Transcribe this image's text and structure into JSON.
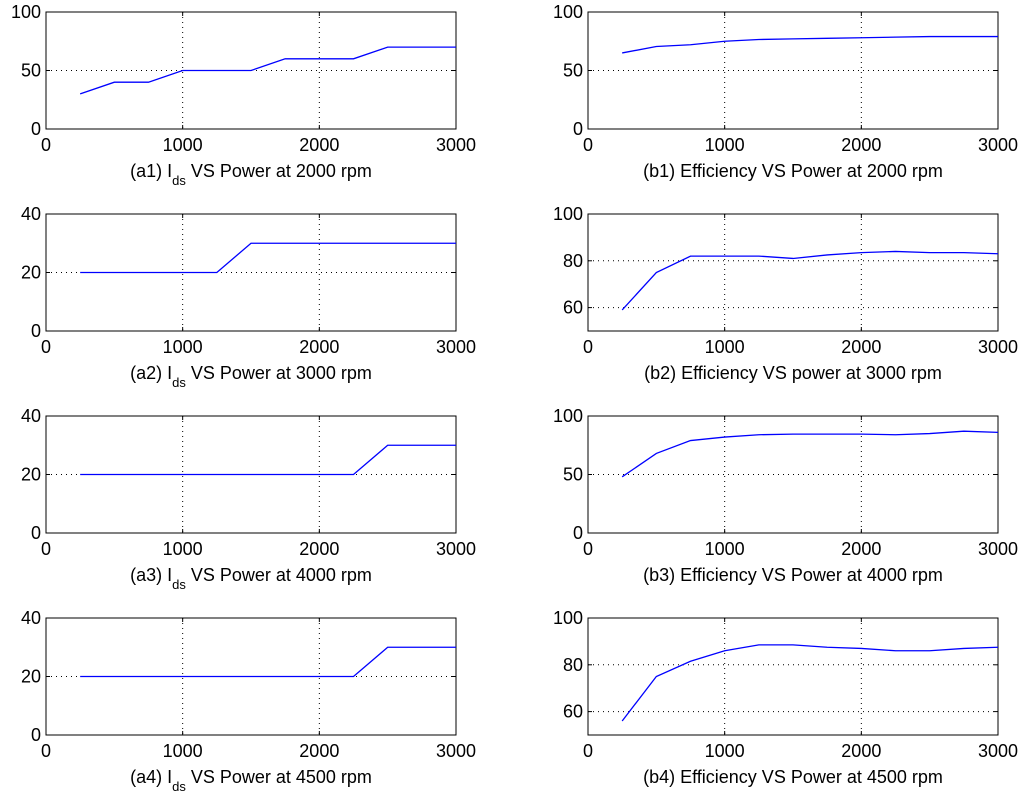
{
  "figure": {
    "line_color": "#0000ff",
    "axis_color": "#000000",
    "grid_style": "dotted"
  },
  "chart_data": [
    {
      "id": "a1",
      "type": "line",
      "caption_prefix": "(a1) I",
      "caption_sub": "ds",
      "caption_suffix": " VS Power at 2000 rpm",
      "xlim": [
        0,
        3000
      ],
      "ylim": [
        0,
        100
      ],
      "xticks": [
        0,
        1000,
        2000,
        3000
      ],
      "yticks": [
        0,
        50,
        100
      ],
      "grid": true,
      "x": [
        250,
        500,
        750,
        1000,
        1250,
        1500,
        1750,
        2000,
        2250,
        2500,
        2750,
        3000
      ],
      "y": [
        30,
        40,
        40,
        50,
        50,
        50,
        60,
        60,
        60,
        70,
        70,
        70
      ]
    },
    {
      "id": "b1",
      "type": "line",
      "caption_prefix": "(b1) Efficiency VS Power at 2000 rpm",
      "caption_sub": "",
      "caption_suffix": "",
      "xlim": [
        0,
        3000
      ],
      "ylim": [
        0,
        100
      ],
      "xticks": [
        0,
        1000,
        2000,
        3000
      ],
      "yticks": [
        0,
        50,
        100
      ],
      "grid": true,
      "x": [
        250,
        500,
        750,
        1000,
        1250,
        1500,
        1750,
        2000,
        2250,
        2500,
        2750,
        3000
      ],
      "y": [
        65,
        70.5,
        72,
        75,
        76.5,
        77,
        77.5,
        78,
        78.5,
        79,
        79,
        79
      ]
    },
    {
      "id": "a2",
      "type": "line",
      "caption_prefix": "(a2) I",
      "caption_sub": "ds",
      "caption_suffix": " VS Power at 3000 rpm",
      "xlim": [
        0,
        3000
      ],
      "ylim": [
        0,
        40
      ],
      "xticks": [
        0,
        1000,
        2000,
        3000
      ],
      "yticks": [
        0,
        20,
        40
      ],
      "grid": true,
      "x": [
        250,
        500,
        750,
        1000,
        1250,
        1500,
        1750,
        2000,
        2250,
        2500,
        2750,
        3000
      ],
      "y": [
        20,
        20,
        20,
        20,
        20,
        30,
        30,
        30,
        30,
        30,
        30,
        30
      ]
    },
    {
      "id": "b2",
      "type": "line",
      "caption_prefix": "(b2) Efficiency VS power at 3000 rpm",
      "caption_sub": "",
      "caption_suffix": "",
      "xlim": [
        0,
        3000
      ],
      "ylim": [
        50,
        100
      ],
      "xticks": [
        0,
        1000,
        2000,
        3000
      ],
      "yticks": [
        60,
        80,
        100
      ],
      "grid": true,
      "x": [
        250,
        500,
        750,
        1000,
        1250,
        1500,
        1750,
        2000,
        2250,
        2500,
        2750,
        3000
      ],
      "y": [
        59,
        75,
        82,
        82,
        82,
        81,
        82.5,
        83.5,
        84,
        83.5,
        83.5,
        83
      ]
    },
    {
      "id": "a3",
      "type": "line",
      "caption_prefix": "(a3) I",
      "caption_sub": "ds",
      "caption_suffix": " VS Power at 4000 rpm",
      "xlim": [
        0,
        3000
      ],
      "ylim": [
        0,
        40
      ],
      "xticks": [
        0,
        1000,
        2000,
        3000
      ],
      "yticks": [
        0,
        20,
        40
      ],
      "grid": true,
      "x": [
        250,
        500,
        750,
        1000,
        1250,
        1500,
        1750,
        2000,
        2250,
        2500,
        2750,
        3000
      ],
      "y": [
        20,
        20,
        20,
        20,
        20,
        20,
        20,
        20,
        20,
        30,
        30,
        30
      ]
    },
    {
      "id": "b3",
      "type": "line",
      "caption_prefix": "(b3) Efficiency VS Power at 4000 rpm",
      "caption_sub": "",
      "caption_suffix": "",
      "xlim": [
        0,
        3000
      ],
      "ylim": [
        0,
        100
      ],
      "xticks": [
        0,
        1000,
        2000,
        3000
      ],
      "yticks": [
        0,
        50,
        100
      ],
      "grid": true,
      "x": [
        250,
        500,
        750,
        1000,
        1250,
        1500,
        1750,
        2000,
        2250,
        2500,
        2750,
        3000
      ],
      "y": [
        48,
        68,
        79,
        82,
        84,
        84.5,
        84.5,
        84.5,
        84,
        85,
        87,
        86
      ]
    },
    {
      "id": "a4",
      "type": "line",
      "caption_prefix": "(a4) I",
      "caption_sub": "ds",
      "caption_suffix": " VS Power at 4500 rpm",
      "xlim": [
        0,
        3000
      ],
      "ylim": [
        0,
        40
      ],
      "xticks": [
        0,
        1000,
        2000,
        3000
      ],
      "yticks": [
        0,
        20,
        40
      ],
      "grid": true,
      "x": [
        250,
        500,
        750,
        1000,
        1250,
        1500,
        1750,
        2000,
        2250,
        2500,
        2750,
        3000
      ],
      "y": [
        20,
        20,
        20,
        20,
        20,
        20,
        20,
        20,
        20,
        30,
        30,
        30
      ]
    },
    {
      "id": "b4",
      "type": "line",
      "caption_prefix": "(b4) Efficiency VS Power at 4500 rpm",
      "caption_sub": "",
      "caption_suffix": "",
      "xlim": [
        0,
        3000
      ],
      "ylim": [
        50,
        100
      ],
      "xticks": [
        0,
        1000,
        2000,
        3000
      ],
      "yticks": [
        60,
        80,
        100
      ],
      "grid": true,
      "x": [
        250,
        500,
        750,
        1000,
        1250,
        1500,
        1750,
        2000,
        2250,
        2500,
        2750,
        3000
      ],
      "y": [
        56,
        75,
        81.5,
        86,
        88.5,
        88.5,
        87.5,
        87,
        86,
        86,
        87,
        87.5
      ]
    }
  ]
}
